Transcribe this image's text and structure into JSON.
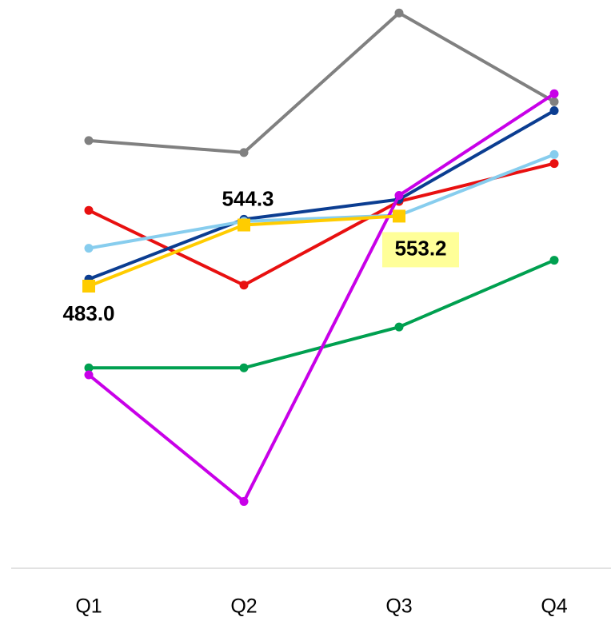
{
  "chart_data": {
    "type": "line",
    "categories": [
      "Q1",
      "Q2",
      "Q3",
      "Q4"
    ],
    "ylim": [
      200,
      770
    ],
    "series": [
      {
        "color": "#808080",
        "values": [
          629,
          617,
          757,
          668
        ]
      },
      {
        "color": "#e81010",
        "values": [
          559,
          484,
          568,
          606
        ]
      },
      {
        "color": "#00a050",
        "values": [
          401,
          401,
          442,
          509
        ]
      },
      {
        "color": "#0b3d91",
        "values": [
          490,
          550,
          570,
          659
        ]
      },
      {
        "color": "#87cdee",
        "values": [
          521,
          548,
          554,
          615
        ]
      },
      {
        "color": "#c800e8",
        "values": [
          394,
          267,
          574,
          676
        ]
      },
      {
        "color": "#ffcc00",
        "marker": "square",
        "values": [
          483.0,
          544.3,
          553.2,
          null
        ],
        "value_labels": [
          "483.0",
          "544.3",
          "553.2",
          null
        ]
      }
    ]
  }
}
